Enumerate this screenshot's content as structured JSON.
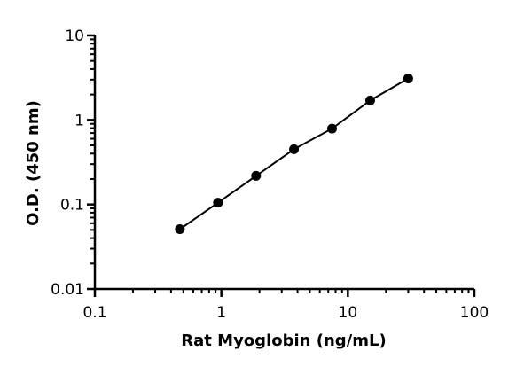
{
  "chart_data": {
    "type": "scatter",
    "title": "",
    "xlabel": "Rat Myoglobin (ng/mL)",
    "ylabel": "O.D. (450 nm)",
    "x_scale": "log",
    "y_scale": "log",
    "xlim": [
      0.1,
      100
    ],
    "ylim": [
      0.01,
      10
    ],
    "x_ticks": [
      "0.1",
      "1",
      "10",
      "100"
    ],
    "y_ticks": [
      "0.01",
      "0.1",
      "1",
      "10"
    ],
    "grid": false,
    "legend": "none",
    "series": [
      {
        "x": [
          0.47,
          0.94,
          1.88,
          3.75,
          7.5,
          15,
          30
        ],
        "y": [
          0.051,
          0.105,
          0.218,
          0.45,
          0.79,
          1.7,
          3.1
        ],
        "marker": "circle",
        "fit_line": true
      }
    ]
  },
  "colors": {
    "marker": "#000000",
    "line": "#000000",
    "axis": "#000000"
  }
}
